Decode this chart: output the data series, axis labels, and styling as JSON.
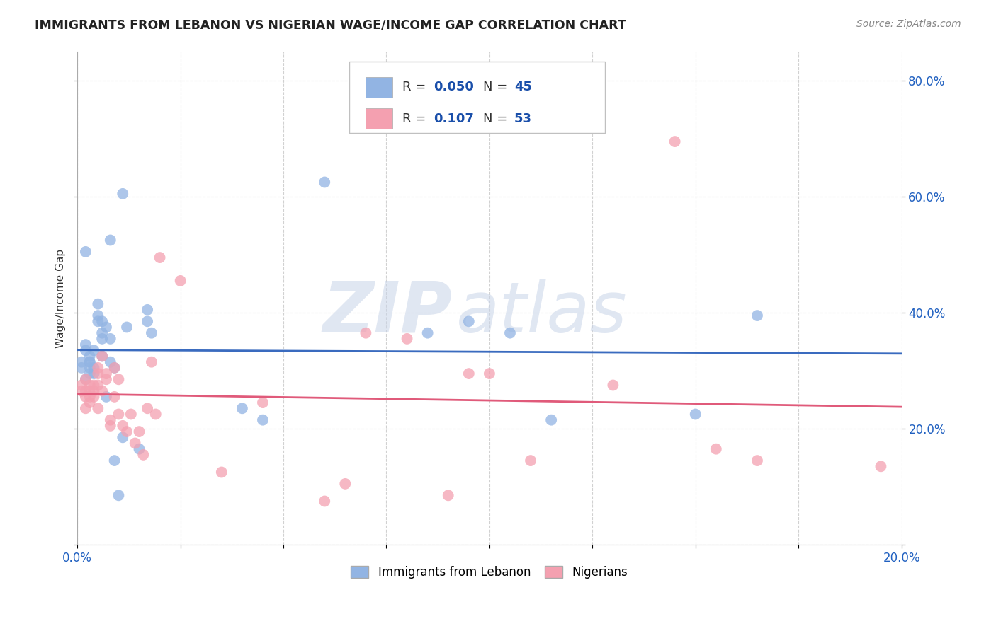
{
  "title": "IMMIGRANTS FROM LEBANON VS NIGERIAN WAGE/INCOME GAP CORRELATION CHART",
  "source": "Source: ZipAtlas.com",
  "ylabel": "Wage/Income Gap",
  "xlim": [
    0.0,
    0.2
  ],
  "ylim": [
    0.0,
    0.85
  ],
  "xticks": [
    0.0,
    0.025,
    0.05,
    0.075,
    0.1,
    0.125,
    0.15,
    0.175,
    0.2
  ],
  "xticklabels": [
    "0.0%",
    "",
    "",
    "",
    "",
    "",
    "",
    "",
    "20.0%"
  ],
  "ytick_positions": [
    0.0,
    0.2,
    0.4,
    0.6,
    0.8
  ],
  "yticklabels": [
    "",
    "20.0%",
    "40.0%",
    "60.0%",
    "80.0%"
  ],
  "label_blue": "Immigrants from Lebanon",
  "label_pink": "Nigerians",
  "blue_color": "#92b4e3",
  "pink_color": "#f4a0b0",
  "trend_blue": "#3a6bbf",
  "trend_pink": "#e05a7a",
  "watermark_zip": "ZIP",
  "watermark_atlas": "atlas",
  "background_color": "#ffffff",
  "grid_color": "#cccccc",
  "blue_x": [
    0.001,
    0.001,
    0.002,
    0.002,
    0.002,
    0.003,
    0.003,
    0.003,
    0.003,
    0.003,
    0.004,
    0.004,
    0.004,
    0.005,
    0.005,
    0.005,
    0.006,
    0.006,
    0.006,
    0.006,
    0.007,
    0.007,
    0.008,
    0.008,
    0.008,
    0.009,
    0.009,
    0.01,
    0.011,
    0.011,
    0.012,
    0.015,
    0.017,
    0.017,
    0.018,
    0.04,
    0.045,
    0.06,
    0.085,
    0.095,
    0.105,
    0.115,
    0.15,
    0.165,
    0.002
  ],
  "blue_y": [
    0.305,
    0.315,
    0.335,
    0.345,
    0.285,
    0.295,
    0.315,
    0.305,
    0.315,
    0.325,
    0.305,
    0.295,
    0.335,
    0.385,
    0.395,
    0.415,
    0.355,
    0.365,
    0.385,
    0.325,
    0.375,
    0.255,
    0.525,
    0.355,
    0.315,
    0.145,
    0.305,
    0.085,
    0.185,
    0.605,
    0.375,
    0.165,
    0.385,
    0.405,
    0.365,
    0.235,
    0.215,
    0.625,
    0.365,
    0.385,
    0.365,
    0.215,
    0.225,
    0.395,
    0.505
  ],
  "pink_x": [
    0.001,
    0.001,
    0.002,
    0.002,
    0.002,
    0.002,
    0.003,
    0.003,
    0.003,
    0.003,
    0.004,
    0.004,
    0.004,
    0.005,
    0.005,
    0.005,
    0.005,
    0.006,
    0.006,
    0.007,
    0.007,
    0.008,
    0.008,
    0.009,
    0.009,
    0.01,
    0.01,
    0.011,
    0.012,
    0.013,
    0.014,
    0.015,
    0.016,
    0.017,
    0.018,
    0.019,
    0.02,
    0.025,
    0.035,
    0.045,
    0.06,
    0.065,
    0.07,
    0.08,
    0.09,
    0.095,
    0.1,
    0.11,
    0.13,
    0.145,
    0.155,
    0.165,
    0.195
  ],
  "pink_y": [
    0.265,
    0.275,
    0.255,
    0.265,
    0.235,
    0.285,
    0.245,
    0.275,
    0.265,
    0.255,
    0.275,
    0.255,
    0.265,
    0.305,
    0.295,
    0.275,
    0.235,
    0.265,
    0.325,
    0.295,
    0.285,
    0.215,
    0.205,
    0.305,
    0.255,
    0.285,
    0.225,
    0.205,
    0.195,
    0.225,
    0.175,
    0.195,
    0.155,
    0.235,
    0.315,
    0.225,
    0.495,
    0.455,
    0.125,
    0.245,
    0.075,
    0.105,
    0.365,
    0.355,
    0.085,
    0.295,
    0.295,
    0.145,
    0.275,
    0.695,
    0.165,
    0.145,
    0.135
  ]
}
